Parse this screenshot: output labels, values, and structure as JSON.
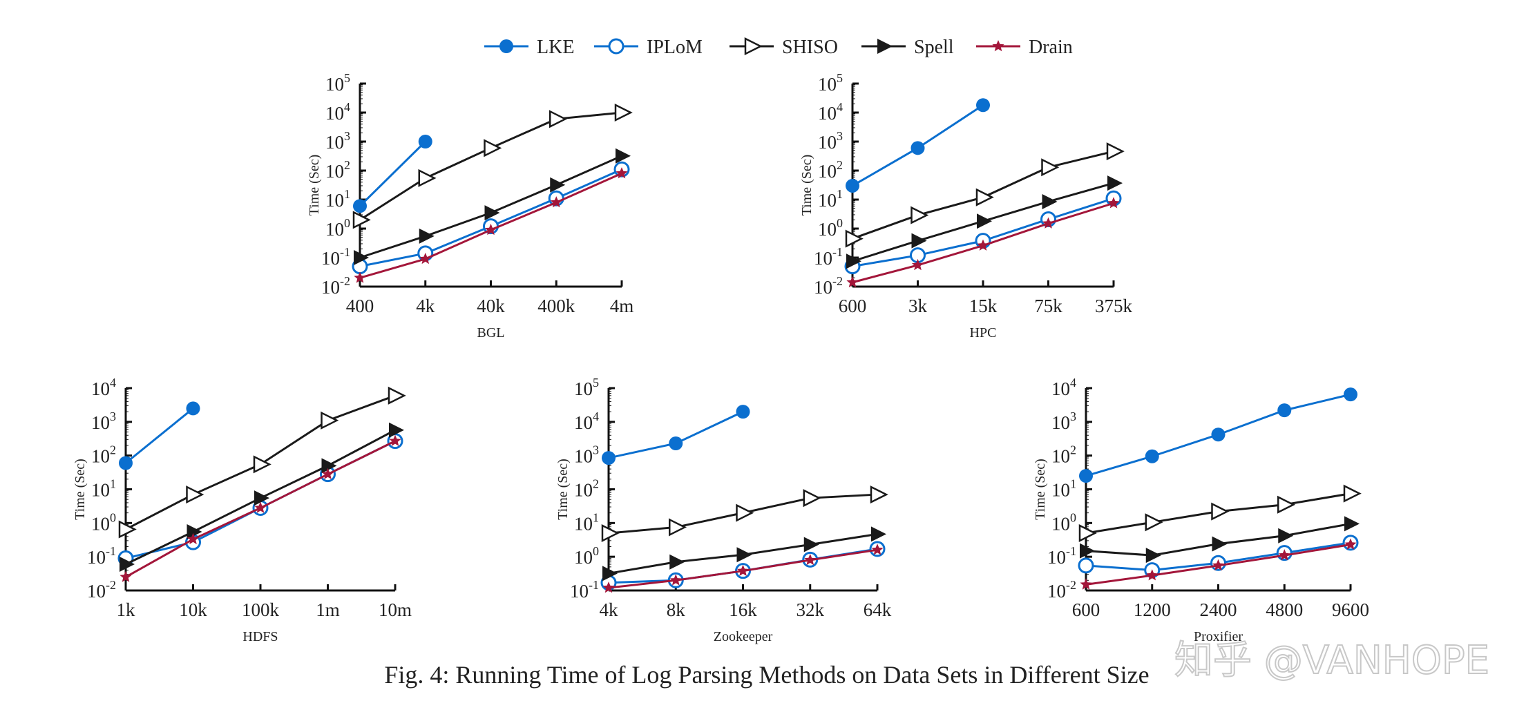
{
  "caption": "Fig. 4: Running Time of Log Parsing Methods on Data Sets in Different Size",
  "watermark": "知乎 @VANHOPE",
  "legend": [
    {
      "name": "LKE",
      "marker": "filled-circle",
      "color": "#0b6fcf"
    },
    {
      "name": "IPLoM",
      "marker": "open-circle",
      "color": "#0b6fcf"
    },
    {
      "name": "SHISO",
      "marker": "open-triangle-right",
      "color": "#1a1a1a"
    },
    {
      "name": "Spell",
      "marker": "filled-triangle-right",
      "color": "#1a1a1a"
    },
    {
      "name": "Drain",
      "marker": "star",
      "color": "#a3163a"
    }
  ],
  "chart_data": [
    {
      "type": "line",
      "title": "",
      "xlabel": "BGL",
      "ylabel": "Time (Sec)",
      "yscale": "log",
      "ylim": [
        0.01,
        100000
      ],
      "categories": [
        "400",
        "4k",
        "40k",
        "400k",
        "4m"
      ],
      "ytick_labels": [
        "10^-2",
        "10^-1",
        "10^0",
        "10^1",
        "10^2",
        "10^3",
        "10^4",
        "10^5"
      ],
      "series": [
        {
          "name": "LKE",
          "values": [
            6,
            1000,
            null,
            null,
            null
          ]
        },
        {
          "name": "IPLoM",
          "values": [
            0.05,
            0.14,
            1.2,
            11,
            110
          ]
        },
        {
          "name": "SHISO",
          "values": [
            2,
            55,
            600,
            6000,
            10000
          ]
        },
        {
          "name": "Spell",
          "values": [
            0.1,
            0.55,
            3.5,
            32,
            320
          ]
        },
        {
          "name": "Drain",
          "values": [
            0.02,
            0.09,
            0.9,
            8,
            80
          ]
        }
      ]
    },
    {
      "type": "line",
      "title": "",
      "xlabel": "HPC",
      "ylabel": "Time (Sec)",
      "yscale": "log",
      "ylim": [
        0.01,
        100000
      ],
      "categories": [
        "600",
        "3k",
        "15k",
        "75k",
        "375k"
      ],
      "ytick_labels": [
        "10^-2",
        "10^-1",
        "10^0",
        "10^1",
        "10^2",
        "10^3",
        "10^4",
        "10^5"
      ],
      "series": [
        {
          "name": "LKE",
          "values": [
            30,
            600,
            18000,
            null,
            null
          ]
        },
        {
          "name": "IPLoM",
          "values": [
            0.05,
            0.12,
            0.38,
            2.1,
            11
          ]
        },
        {
          "name": "SHISO",
          "values": [
            0.45,
            2.9,
            12,
            130,
            460
          ]
        },
        {
          "name": "Spell",
          "values": [
            0.075,
            0.38,
            1.8,
            8.5,
            37
          ]
        },
        {
          "name": "Drain",
          "values": [
            0.014,
            0.055,
            0.26,
            1.5,
            7.5
          ]
        }
      ]
    },
    {
      "type": "line",
      "title": "",
      "xlabel": "HDFS",
      "ylabel": "Time (Sec)",
      "yscale": "log",
      "ylim": [
        0.01,
        10000
      ],
      "categories": [
        "1k",
        "10k",
        "100k",
        "1m",
        "10m"
      ],
      "ytick_labels": [
        "10^-2",
        "10^-1",
        "10^0",
        "10^1",
        "10^2",
        "10^3",
        "10^4"
      ],
      "series": [
        {
          "name": "LKE",
          "values": [
            60,
            2500,
            null,
            null,
            null
          ]
        },
        {
          "name": "IPLoM",
          "values": [
            0.09,
            0.27,
            2.8,
            28,
            270
          ]
        },
        {
          "name": "SHISO",
          "values": [
            0.65,
            7,
            55,
            1100,
            6000
          ]
        },
        {
          "name": "Spell",
          "values": [
            0.06,
            0.55,
            5.5,
            50,
            570
          ]
        },
        {
          "name": "Drain",
          "values": [
            0.025,
            0.33,
            2.8,
            28,
            270
          ]
        }
      ]
    },
    {
      "type": "line",
      "title": "",
      "xlabel": "Zookeeper",
      "ylabel": "Time (Sec)",
      "yscale": "log",
      "ylim": [
        0.1,
        100000
      ],
      "categories": [
        "4k",
        "8k",
        "16k",
        "32k",
        "64k"
      ],
      "ytick_labels": [
        "10^-1",
        "10^0",
        "10^1",
        "10^2",
        "10^3",
        "10^4",
        "10^5"
      ],
      "series": [
        {
          "name": "LKE",
          "values": [
            850,
            2300,
            20000,
            null,
            null
          ]
        },
        {
          "name": "IPLoM",
          "values": [
            0.17,
            0.2,
            0.38,
            0.82,
            1.7
          ]
        },
        {
          "name": "SHISO",
          "values": [
            5,
            7.5,
            20,
            55,
            70
          ]
        },
        {
          "name": "Spell",
          "values": [
            0.32,
            0.7,
            1.15,
            2.3,
            4.7
          ]
        },
        {
          "name": "Drain",
          "values": [
            0.12,
            0.2,
            0.38,
            0.8,
            1.6
          ]
        }
      ]
    },
    {
      "type": "line",
      "title": "",
      "xlabel": "Proxifier",
      "ylabel": "Time (Sec)",
      "yscale": "log",
      "ylim": [
        0.01,
        10000
      ],
      "categories": [
        "600",
        "1200",
        "2400",
        "4800",
        "9600"
      ],
      "ytick_labels": [
        "10^-2",
        "10^-1",
        "10^0",
        "10^1",
        "10^2",
        "10^3",
        "10^4"
      ],
      "series": [
        {
          "name": "LKE",
          "values": [
            25,
            95,
            420,
            2200,
            6500
          ]
        },
        {
          "name": "IPLoM",
          "values": [
            0.055,
            0.04,
            0.065,
            0.13,
            0.26
          ]
        },
        {
          "name": "SHISO",
          "values": [
            0.5,
            1.05,
            2.2,
            3.5,
            7.5
          ]
        },
        {
          "name": "Spell",
          "values": [
            0.15,
            0.11,
            0.24,
            0.42,
            0.95
          ]
        },
        {
          "name": "Drain",
          "values": [
            0.015,
            0.028,
            0.055,
            0.11,
            0.23
          ]
        }
      ]
    }
  ]
}
